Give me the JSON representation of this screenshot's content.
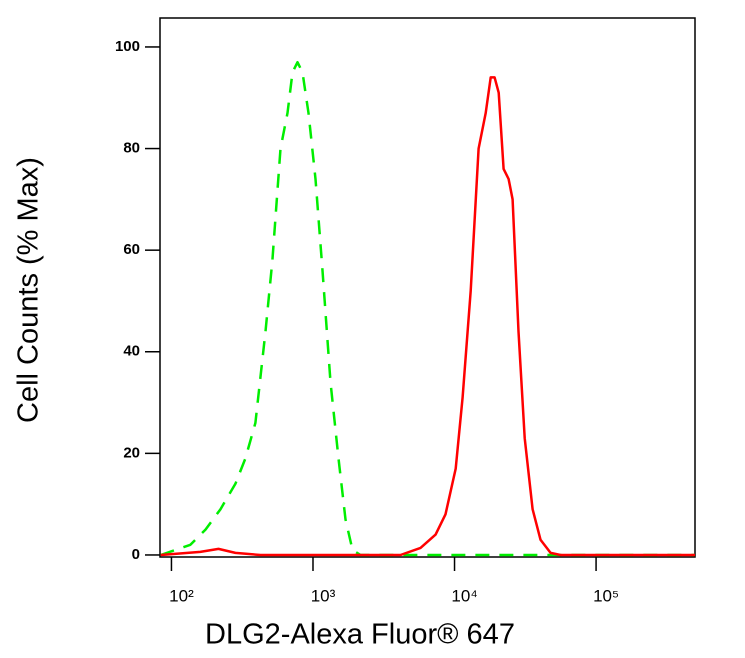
{
  "chart_data": {
    "type": "line",
    "xlabel": "DLG2-Alexa Fluor® 647",
    "ylabel": "Cell Counts (% Max)",
    "xscale": "log",
    "xlim": [
      83,
      500000
    ],
    "ylim": [
      -0.4,
      105.7
    ],
    "xticks": [
      {
        "value": 100,
        "label": "10²"
      },
      {
        "value": 1000,
        "label": "10³"
      },
      {
        "value": 10000,
        "label": "10⁴"
      },
      {
        "value": 100000,
        "label": "10⁵"
      }
    ],
    "yticks": [
      0,
      20,
      40,
      60,
      80,
      100
    ],
    "grid": false,
    "series": [
      {
        "color": "#00ee00",
        "line_style": "dashed",
        "x": [
          84,
          107,
          136,
          174,
          222,
          283,
          333,
          392,
          462,
          517,
          589,
          661,
          716,
          777,
          843,
          929,
          1042,
          1167,
          1330,
          1514,
          1698,
          1901,
          2166,
          500000
        ],
        "values": [
          0,
          1,
          2,
          5,
          9,
          14,
          19,
          26,
          44,
          58,
          80,
          87,
          95,
          97,
          95,
          87,
          74,
          56,
          34,
          19,
          7,
          1,
          0,
          0
        ]
      },
      {
        "color": "#ff0000",
        "line_style": "solid",
        "x": [
          84,
          160,
          215,
          283,
          426,
          4150,
          5750,
          7350,
          8640,
          10200,
          11400,
          13000,
          14800,
          16600,
          18000,
          19200,
          20500,
          22200,
          24100,
          25700,
          28300,
          31300,
          35600,
          40500,
          47700,
          56100,
          500000
        ],
        "values": [
          0,
          0.6,
          1.2,
          0.4,
          0,
          0,
          1.4,
          4,
          8,
          17,
          31,
          52,
          80,
          87,
          94,
          94,
          91,
          76,
          74,
          70,
          44,
          23,
          9,
          3,
          0.4,
          0,
          0
        ]
      }
    ]
  }
}
